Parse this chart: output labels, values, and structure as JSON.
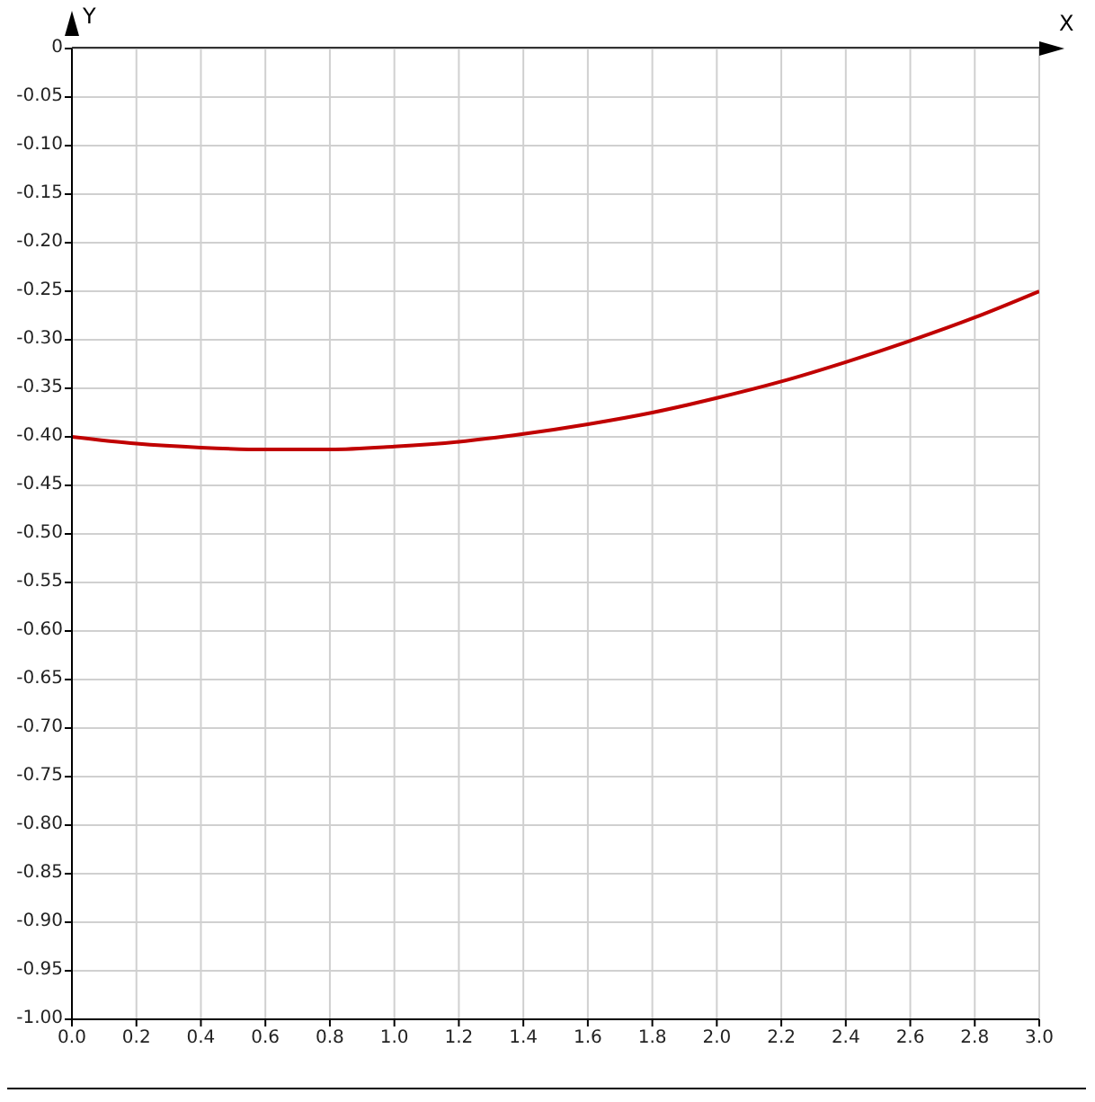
{
  "chart_data": {
    "type": "line",
    "xlabel": "X",
    "ylabel": "Y",
    "x": [
      0,
      0.2,
      0.4,
      0.6,
      0.8,
      1.0,
      1.2,
      1.4,
      1.6,
      1.8,
      2.0,
      2.2,
      2.4,
      2.6,
      2.8,
      3.0
    ],
    "series": [
      {
        "color": "#c00000",
        "values": [
          -0.4,
          -0.407,
          -0.411,
          -0.413,
          -0.413,
          -0.41,
          -0.405,
          -0.397,
          -0.387,
          -0.375,
          -0.36,
          -0.343,
          -0.323,
          -0.301,
          -0.277,
          -0.25
        ]
      }
    ],
    "xlim": [
      0,
      3
    ],
    "ylim": [
      -1,
      0
    ],
    "xticks": [
      {
        "value": 0,
        "label": "0.0"
      },
      {
        "value": 0.2,
        "label": "0.2"
      },
      {
        "value": 0.4,
        "label": "0.4"
      },
      {
        "value": 0.6,
        "label": "0.6"
      },
      {
        "value": 0.8,
        "label": "0.8"
      },
      {
        "value": 1,
        "label": "1.0"
      },
      {
        "value": 1.2,
        "label": "1.2"
      },
      {
        "value": 1.4,
        "label": "1.4"
      },
      {
        "value": 1.6,
        "label": "1.6"
      },
      {
        "value": 1.8,
        "label": "1.8"
      },
      {
        "value": 2,
        "label": "2.0"
      },
      {
        "value": 2.2,
        "label": "2.2"
      },
      {
        "value": 2.4,
        "label": "2.4"
      },
      {
        "value": 2.6,
        "label": "2.6"
      },
      {
        "value": 2.8,
        "label": "2.8"
      },
      {
        "value": 3,
        "label": "3.0"
      }
    ],
    "yticks": [
      0,
      {
        "value": -0.05,
        "label": "-0.05"
      },
      {
        "value": -0.1,
        "label": "-0.10"
      },
      {
        "value": -0.15,
        "label": "-0.15"
      },
      {
        "value": -0.2,
        "label": "-0.20"
      },
      {
        "value": -0.25,
        "label": "-0.25"
      },
      {
        "value": -0.3,
        "label": "-0.30"
      },
      {
        "value": -0.35,
        "label": "-0.35"
      },
      {
        "value": -0.4,
        "label": "-0.40"
      },
      {
        "value": -0.45,
        "label": "-0.45"
      },
      {
        "value": -0.5,
        "label": "-0.50"
      },
      {
        "value": -0.55,
        "label": "-0.55"
      },
      {
        "value": -0.6,
        "label": "-0.60"
      },
      {
        "value": -0.65,
        "label": "-0.65"
      },
      {
        "value": -0.7,
        "label": "-0.70"
      },
      {
        "value": -0.75,
        "label": "-0.75"
      },
      {
        "value": -0.8,
        "label": "-0.80"
      },
      {
        "value": -0.85,
        "label": "-0.85"
      },
      {
        "value": -0.9,
        "label": "-0.90"
      },
      {
        "value": -0.95,
        "label": "-0.95"
      },
      {
        "value": -1,
        "label": "-1.00"
      }
    ],
    "grid": true,
    "legend": false,
    "marker": "none",
    "line_style": "solid"
  }
}
